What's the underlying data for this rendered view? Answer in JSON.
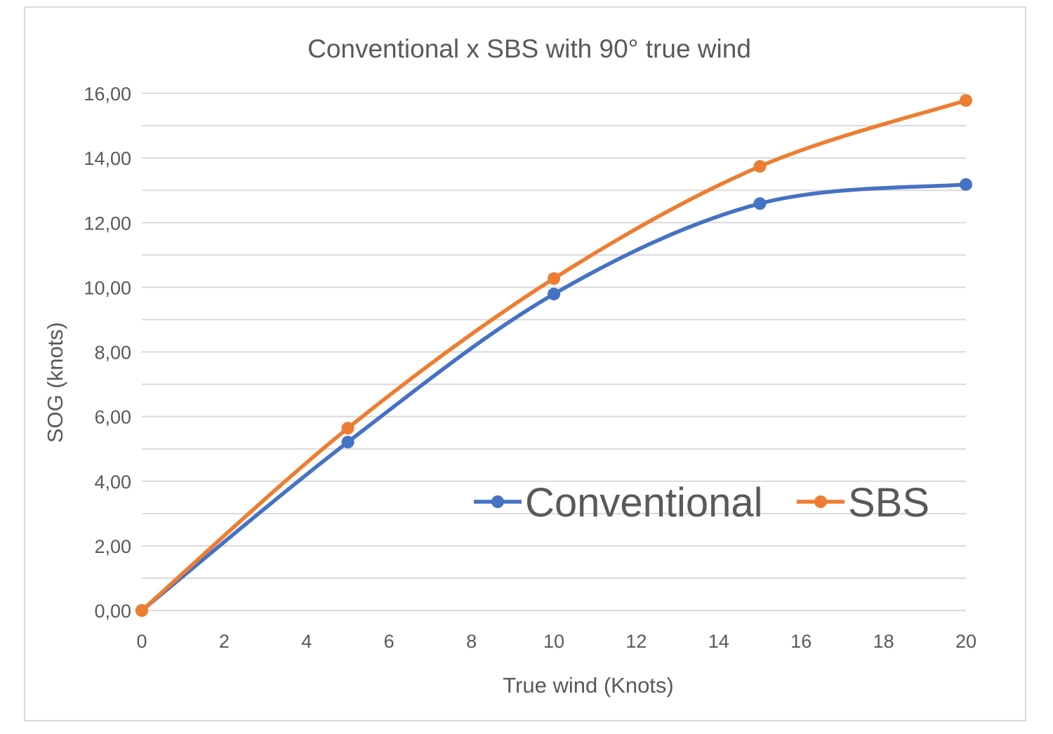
{
  "chart_data": {
    "type": "line",
    "title": "Conventional x SBS with 90° true wind",
    "xlabel": "True wind (Knots)",
    "ylabel": "SOG (knots)",
    "xlim": [
      0,
      20
    ],
    "ylim": [
      0,
      16
    ],
    "x_ticks": [
      "0",
      "2",
      "4",
      "6",
      "8",
      "10",
      "12",
      "14",
      "16",
      "18",
      "20"
    ],
    "y_ticks": [
      "0,00",
      "2,00",
      "4,00",
      "6,00",
      "8,00",
      "10,00",
      "12,00",
      "14,00",
      "16,00"
    ],
    "grid": true,
    "smooth": true,
    "legend_position": "inside-right",
    "x": [
      0,
      5,
      10,
      15,
      20
    ],
    "series": [
      {
        "name": "Conventional",
        "color": "#4472C4",
        "values": [
          0,
          5.21,
          9.79,
          12.59,
          13.18
        ]
      },
      {
        "name": "SBS",
        "color": "#ED7D31",
        "values": [
          0,
          5.64,
          10.27,
          13.74,
          15.78
        ]
      }
    ]
  }
}
